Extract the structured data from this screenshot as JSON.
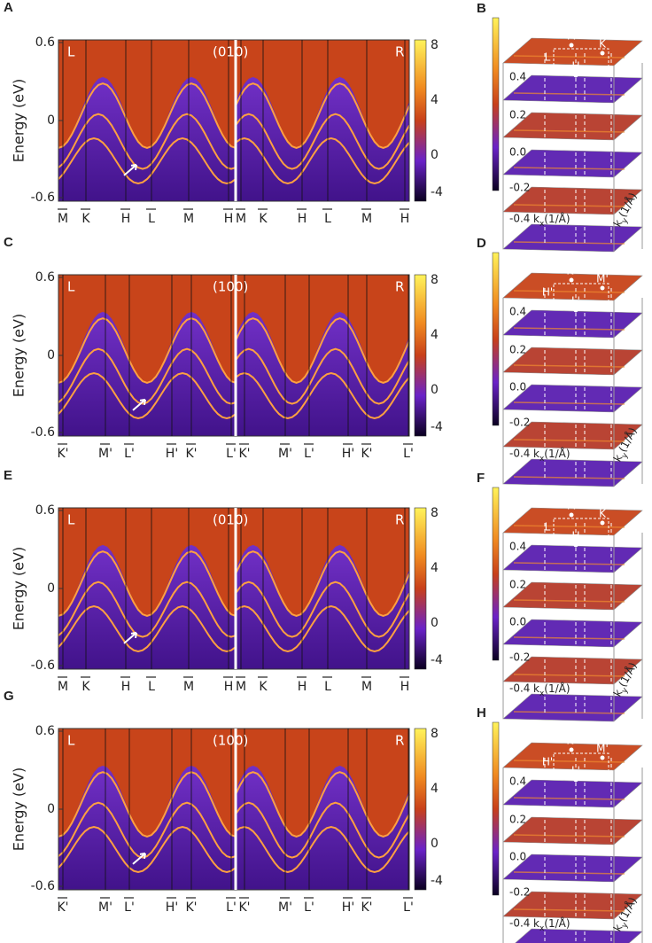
{
  "left_panels": [
    {
      "label": "A",
      "y_axis_label": "Energy (eV)",
      "y_ticks": [
        "0.6",
        "0",
        "-0.6"
      ],
      "left_tag": "L",
      "surface": "(010)",
      "right_tag": "R",
      "colorbar_ticks": [
        "8",
        "4",
        "0",
        "-4"
      ],
      "k_points": [
        "M",
        "K",
        "H",
        "L",
        "M",
        "H",
        "M",
        "K",
        "H",
        "L",
        "M",
        "H"
      ]
    },
    {
      "label": "C",
      "y_axis_label": "Energy (eV)",
      "y_ticks": [
        "0.6",
        "0",
        "-0.6"
      ],
      "left_tag": "L",
      "surface": "(100)",
      "right_tag": "R",
      "colorbar_ticks": [
        "8",
        "4",
        "0",
        "-4"
      ],
      "k_points": [
        "K'",
        "M'",
        "L'",
        "H'",
        "K'",
        "L'",
        "K'",
        "M'",
        "L'",
        "H'",
        "K'",
        "L'"
      ]
    },
    {
      "label": "E",
      "y_axis_label": "Energy (eV)",
      "y_ticks": [
        "0.6",
        "0",
        "-0.6"
      ],
      "left_tag": "L",
      "surface": "(010)",
      "right_tag": "R",
      "colorbar_ticks": [
        "8",
        "4",
        "0",
        "-4"
      ],
      "k_points": [
        "M",
        "K",
        "H",
        "L",
        "M",
        "H",
        "M",
        "K",
        "H",
        "L",
        "M",
        "H"
      ]
    },
    {
      "label": "G",
      "y_axis_label": "Energy (eV)",
      "y_ticks": [
        "0.6",
        "0",
        "-0.6"
      ],
      "left_tag": "L",
      "surface": "(100)",
      "right_tag": "R",
      "colorbar_ticks": [
        "8",
        "4",
        "0",
        "-4"
      ],
      "k_points": [
        "K'",
        "M'",
        "L'",
        "H'",
        "K'",
        "L'",
        "K'",
        "M'",
        "L'",
        "H'",
        "K'",
        "L'"
      ]
    }
  ],
  "right_panels": [
    {
      "label": "B",
      "energy_labels": [
        "0.4",
        "0.2",
        "0.0",
        "-0.2",
        "-0.4"
      ],
      "kx_label": [
        "k",
        "x",
        "(1/Å)"
      ],
      "ky_label": [
        "k",
        "y",
        "(1/Å)"
      ],
      "points": [
        "M",
        "K",
        "L",
        "H"
      ]
    },
    {
      "label": "D",
      "energy_labels": [
        "0.4",
        "0.2",
        "0.0",
        "-0.2",
        "-0.4"
      ],
      "kx_label": [
        "k",
        "x",
        "(1/Å)"
      ],
      "ky_label": [
        "k",
        "y",
        "(1/Å)"
      ],
      "points": [
        "K'",
        "M'",
        "H'",
        "L'"
      ]
    },
    {
      "label": "F",
      "energy_labels": [
        "0.4",
        "0.2",
        "0.0",
        "-0.2",
        "-0.4"
      ],
      "kx_label": [
        "k",
        "x",
        "(1/Å)"
      ],
      "ky_label": [
        "k",
        "y",
        "(1/Å)"
      ],
      "points": [
        "M",
        "K",
        "L",
        "H"
      ]
    },
    {
      "label": "H",
      "energy_labels": [
        "0.4",
        "0.2",
        "0.0",
        "-0.2",
        "-0.4"
      ],
      "kx_label": [
        "k",
        "x",
        "(1/Å)"
      ],
      "ky_label": [
        "k",
        "y",
        "(1/Å)"
      ],
      "points": [
        "K'",
        "M'",
        "H'",
        "L'"
      ]
    }
  ]
}
